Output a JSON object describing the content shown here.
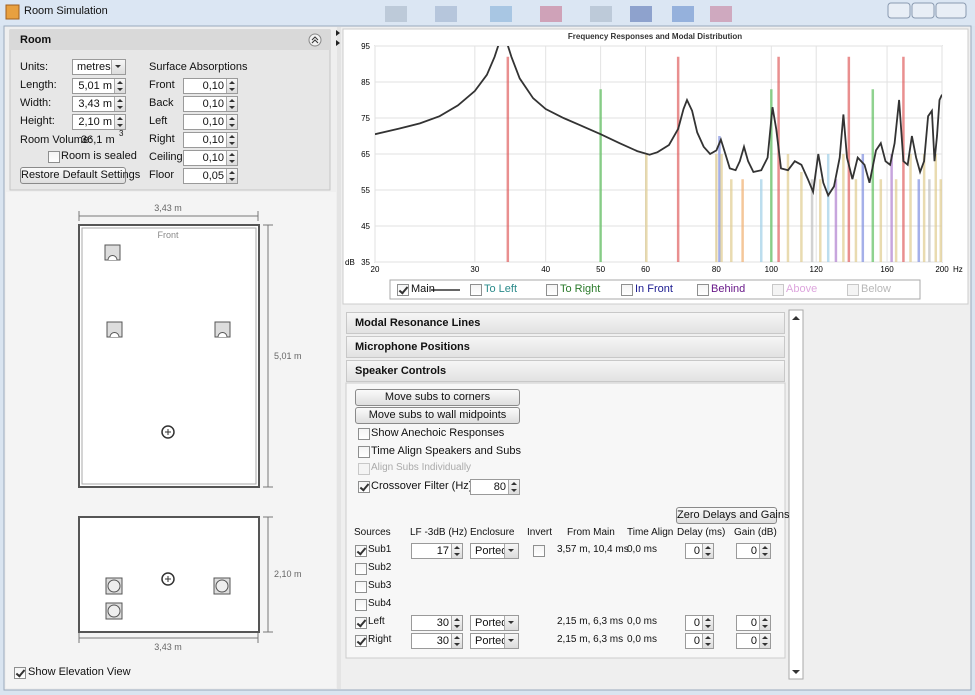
{
  "window": {
    "title": "Room Simulation"
  },
  "room": {
    "title": "Room",
    "units_label": "Units:",
    "units": "metres",
    "surface_title": "Surface Absorptions",
    "dims": [
      {
        "label": "Length:",
        "value": "5,01 m"
      },
      {
        "label": "Width:",
        "value": "3,43 m"
      },
      {
        "label": "Height:",
        "value": "2,10 m"
      }
    ],
    "volume_label": "Room Volume:",
    "volume": "36,1 m",
    "volume_exponent": "3",
    "sealed": {
      "label": "Room is sealed",
      "checked": false
    },
    "restore_button": "Restore Default Settings",
    "absorptions": [
      {
        "label": "Front",
        "value": "0,10"
      },
      {
        "label": "Back",
        "value": "0,10"
      },
      {
        "label": "Left",
        "value": "0,10"
      },
      {
        "label": "Right",
        "value": "0,10"
      },
      {
        "label": "Ceiling",
        "value": "0,10"
      },
      {
        "label": "Floor",
        "value": "0,05"
      }
    ]
  },
  "diagram": {
    "plan_width": "3,43 m",
    "front": "Front",
    "plan_length": "5,01 m",
    "elev_height": "2,10 m",
    "elev_width": "3,43 m",
    "elevation_toggle": {
      "label": "Show Elevation View",
      "checked": true
    }
  },
  "chart_data": {
    "type": "line",
    "title": "Frequency Responses and Modal Distribution",
    "x_unit": "Hz",
    "y_unit": "dB",
    "log_x": true,
    "grid": true,
    "xlim": [
      20,
      200
    ],
    "ylim": [
      35,
      95
    ],
    "xticks": [
      20,
      30,
      40,
      50,
      60,
      80,
      100,
      120,
      160,
      200
    ],
    "yticks": [
      35,
      45,
      55,
      65,
      75,
      85,
      95
    ],
    "series": [
      {
        "name": "Main",
        "color": "#333333",
        "x": [
          20,
          22,
          24,
          26,
          28,
          30,
          31.5,
          32.5,
          33.3,
          34,
          34.8,
          36,
          38,
          40,
          43,
          46,
          50,
          54,
          58,
          61,
          63,
          66,
          68.5,
          70,
          71,
          72.5,
          74,
          76,
          78,
          80,
          81.5,
          83,
          84.5,
          86.5,
          88,
          89.5,
          91,
          93,
          96,
          98.5,
          100.5,
          102,
          104,
          107,
          110,
          113,
          116,
          118.5,
          121,
          123.5,
          126,
          129,
          132,
          134,
          136,
          139,
          142,
          146,
          149,
          153,
          156,
          159,
          162,
          165,
          168,
          171,
          174,
          177,
          180,
          183,
          186,
          189,
          192,
          194,
          196,
          198,
          200
        ],
        "values": [
          70.5,
          72,
          73.5,
          75.5,
          78.5,
          82.5,
          87,
          92,
          97,
          97,
          92,
          86,
          80.5,
          77.5,
          75,
          73,
          70.5,
          68,
          65.8,
          64.8,
          65.5,
          67.5,
          72,
          77.5,
          80,
          77,
          71,
          67,
          65,
          66,
          69,
          65,
          61,
          60.5,
          63,
          67,
          63,
          60,
          60.5,
          64,
          78,
          72,
          61,
          60.5,
          63,
          62,
          58,
          54.5,
          65,
          57,
          53.5,
          56,
          64,
          76,
          64,
          58,
          64,
          62,
          57,
          66,
          68,
          63,
          62,
          68,
          80,
          63,
          62,
          70,
          64,
          60,
          63,
          75.5,
          77,
          63,
          70,
          80,
          81.5
        ]
      }
    ],
    "modes": {
      "x": [
        34.3,
        50,
        60.2,
        68.5,
        80,
        81,
        81.7,
        85,
        89,
        96,
        100,
        103,
        107,
        113,
        118,
        122,
        126,
        130,
        134,
        137,
        141,
        145,
        151,
        156,
        163,
        166,
        171,
        176,
        182,
        186,
        190,
        195,
        199
      ],
      "values": [
        92,
        83,
        65,
        92,
        65,
        70,
        65,
        58,
        58,
        58,
        83,
        92,
        65,
        60,
        58,
        58,
        65,
        58,
        65,
        92,
        58,
        65,
        83,
        58,
        65,
        58,
        92,
        65,
        58,
        65,
        58,
        65,
        58
      ],
      "colors": [
        "#e06060",
        "#60c060",
        "#e0cc90",
        "#e06060",
        "#e0cc90",
        "#8090e0",
        "#e0cc90",
        "#e0cc90",
        "#f0b070",
        "#a0d0e8",
        "#60c060",
        "#e06060",
        "#e0cc90",
        "#e0cc90",
        "#c0c0c0",
        "#e0cc90",
        "#a0d0e8",
        "#b080d0",
        "#e0cc90",
        "#e06060",
        "#e0cc90",
        "#8090e0",
        "#60c060",
        "#e0cc90",
        "#b080d0",
        "#e0cc90",
        "#e06060",
        "#e0cc90",
        "#8090e0",
        "#e0cc90",
        "#c0c0c0",
        "#e0cc90",
        "#e0cc90"
      ]
    },
    "legend": [
      {
        "name": "Main",
        "color": "#333333",
        "checked": true,
        "enabled": true
      },
      {
        "name": "To Left",
        "color": "#2a8a8a",
        "checked": false,
        "enabled": true
      },
      {
        "name": "To Right",
        "color": "#2a7a2a",
        "checked": false,
        "enabled": true
      },
      {
        "name": "In Front",
        "color": "#1a1a90",
        "checked": false,
        "enabled": true
      },
      {
        "name": "Behind",
        "color": "#6a1a8a",
        "checked": false,
        "enabled": true
      },
      {
        "name": "Above",
        "color": "#d080d0",
        "checked": false,
        "enabled": false
      },
      {
        "name": "Below",
        "color": "#999999",
        "checked": false,
        "enabled": false
      }
    ]
  },
  "panels": [
    {
      "title": "Modal Resonance Lines",
      "expanded": false
    },
    {
      "title": "Microphone Positions",
      "expanded": false
    },
    {
      "title": "Speaker Controls",
      "expanded": true
    }
  ],
  "speaker_controls": {
    "buttons": [
      "Move subs to corners",
      "Move subs to wall midpoints"
    ],
    "options": [
      {
        "label": "Show Anechoic Responses",
        "checked": false,
        "enabled": true
      },
      {
        "label": "Time Align Speakers and Subs",
        "checked": false,
        "enabled": true
      },
      {
        "label": "Align Subs Individually",
        "checked": false,
        "enabled": false
      },
      {
        "label": "Crossover Filter (Hz)",
        "checked": true,
        "enabled": true,
        "value": "80"
      }
    ],
    "zero_button": "Zero Delays and Gains",
    "headers": [
      "Sources",
      "LF -3dB (Hz)",
      "Enclosure",
      "Invert",
      "From Main",
      "Time Align",
      "Delay (ms)",
      "Gain (dB)"
    ],
    "sources": [
      {
        "name": "Sub1",
        "checked": true,
        "lf": "17",
        "enclosure": "Ported",
        "invert": false,
        "from_main": "3,57 m, 10,4 ms",
        "time_align": "0,0 ms",
        "delay": "0",
        "gain": "0"
      },
      {
        "name": "Sub2",
        "checked": false
      },
      {
        "name": "Sub3",
        "checked": false
      },
      {
        "name": "Sub4",
        "checked": false
      },
      {
        "name": "Left",
        "checked": true,
        "lf": "30",
        "enclosure": "Ported",
        "from_main": "2,15 m, 6,3 ms",
        "time_align": "0,0 ms",
        "delay": "0",
        "gain": "0"
      },
      {
        "name": "Right",
        "checked": true,
        "lf": "30",
        "enclosure": "Ported",
        "from_main": "2,15 m, 6,3 ms",
        "time_align": "0,0 ms",
        "delay": "0",
        "gain": "0"
      }
    ]
  }
}
